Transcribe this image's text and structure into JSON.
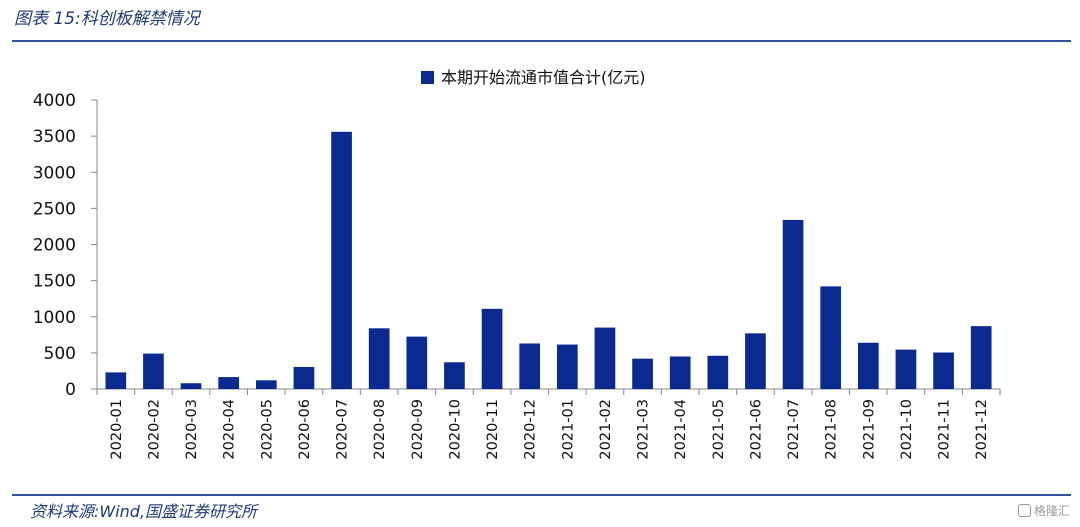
{
  "figure": {
    "title": "图表 15:科创板解禁情况",
    "source": "资料来源:Wind,国盛证券研究所",
    "watermark": "格隆汇"
  },
  "colors": {
    "bar": "#0b2a8f",
    "rule": "#2f5597",
    "title": "#1f3b73"
  },
  "chart_data": {
    "type": "bar",
    "title": "",
    "xlabel": "",
    "ylabel": "",
    "ylim": [
      0,
      4000
    ],
    "yticks": [
      0,
      500,
      1000,
      1500,
      2000,
      2500,
      3000,
      3500,
      4000
    ],
    "legend_position": "top-center",
    "categories": [
      "2020-01",
      "2020-02",
      "2020-03",
      "2020-04",
      "2020-05",
      "2020-06",
      "2020-07",
      "2020-08",
      "2020-09",
      "2020-10",
      "2020-11",
      "2020-12",
      "2021-01",
      "2021-02",
      "2021-03",
      "2021-04",
      "2021-05",
      "2021-06",
      "2021-07",
      "2021-08",
      "2021-09",
      "2021-10",
      "2021-11",
      "2021-12"
    ],
    "series": [
      {
        "name": "本期开始流通市值合计(亿元)",
        "color": "#0b2a8f",
        "values": [
          230,
          490,
          80,
          165,
          120,
          305,
          3560,
          840,
          725,
          370,
          1110,
          630,
          615,
          850,
          420,
          450,
          460,
          770,
          2340,
          1420,
          640,
          545,
          505,
          870
        ]
      }
    ]
  }
}
